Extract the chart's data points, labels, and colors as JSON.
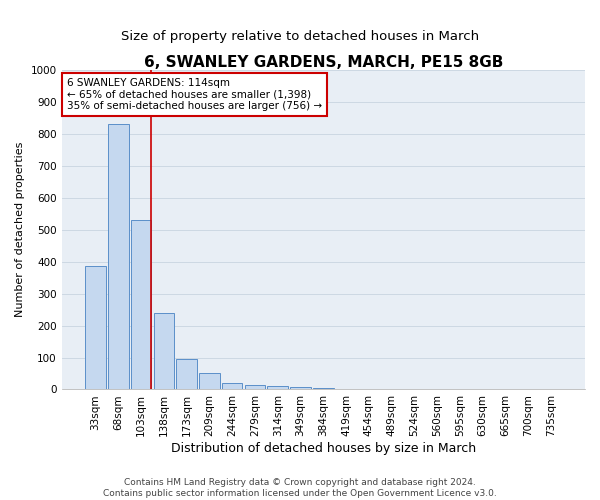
{
  "title": "6, SWANLEY GARDENS, MARCH, PE15 8GB",
  "subtitle": "Size of property relative to detached houses in March",
  "xlabel": "Distribution of detached houses by size in March",
  "ylabel": "Number of detached properties",
  "bar_labels": [
    "33sqm",
    "68sqm",
    "103sqm",
    "138sqm",
    "173sqm",
    "209sqm",
    "244sqm",
    "279sqm",
    "314sqm",
    "349sqm",
    "384sqm",
    "419sqm",
    "454sqm",
    "489sqm",
    "524sqm",
    "560sqm",
    "595sqm",
    "630sqm",
    "665sqm",
    "700sqm",
    "735sqm"
  ],
  "bar_values": [
    385,
    830,
    530,
    240,
    95,
    50,
    20,
    15,
    10,
    7,
    5,
    0,
    0,
    0,
    0,
    0,
    0,
    0,
    0,
    0,
    0
  ],
  "bar_color": "#c5d8ef",
  "bar_edgecolor": "#5b8fc9",
  "bar_linewidth": 0.7,
  "vline_index": 2,
  "vline_color": "#cc0000",
  "vline_linewidth": 1.2,
  "annotation_text": "6 SWANLEY GARDENS: 114sqm\n← 65% of detached houses are smaller (1,398)\n35% of semi-detached houses are larger (756) →",
  "annotation_box_edgecolor": "#cc0000",
  "annotation_box_facecolor": "#ffffff",
  "ylim_max": 1000,
  "yticks": [
    0,
    100,
    200,
    300,
    400,
    500,
    600,
    700,
    800,
    900,
    1000
  ],
  "grid_color": "#c8d4e0",
  "grid_linewidth": 0.6,
  "plot_bg_color": "#e8eef5",
  "footer_line1": "Contains HM Land Registry data © Crown copyright and database right 2024.",
  "footer_line2": "Contains public sector information licensed under the Open Government Licence v3.0.",
  "title_fontsize": 11,
  "subtitle_fontsize": 9.5,
  "xlabel_fontsize": 9,
  "ylabel_fontsize": 8,
  "tick_fontsize": 7.5,
  "annotation_fontsize": 7.5,
  "footer_fontsize": 6.5
}
